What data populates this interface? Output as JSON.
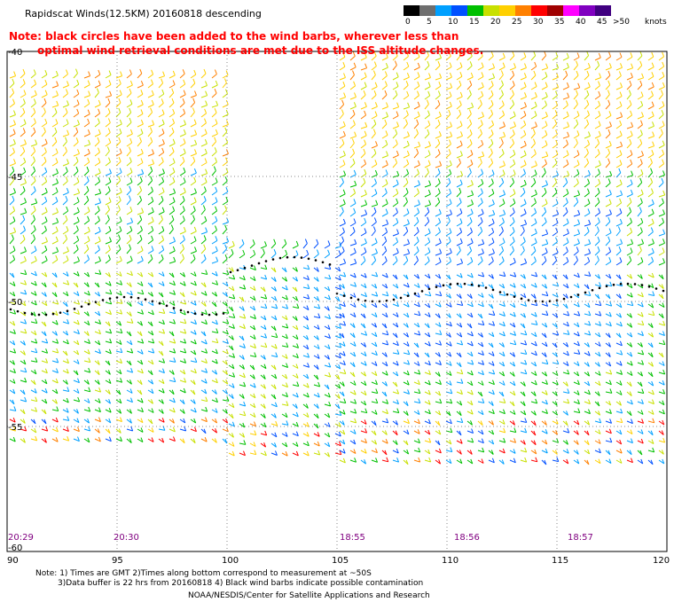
{
  "title": "Rapidscat Winds(12.5KM) 20160818 descending",
  "note_line1": "Note: black circles have been added to the wind barbs, wherever less than",
  "note_line2": "optimal wind retrieval conditions are met due to the ISS altitude changes.",
  "legend": {
    "unit": "knots",
    "labels": [
      "0",
      "5",
      "10",
      "15",
      "20",
      "25",
      "30",
      "35",
      "40",
      "45",
      ">50"
    ],
    "colors": [
      "#000000",
      "#6e6e6e",
      "#00a0ff",
      "#0050ff",
      "#00c000",
      "#c8e000",
      "#ffd000",
      "#ff8000",
      "#ff0000",
      "#a00000",
      "#ff00ff",
      "#8000c0",
      "#400080"
    ]
  },
  "axes": {
    "lon_ticks": [
      "90",
      "95",
      "100",
      "105",
      "110",
      "115",
      "120"
    ],
    "lat_ticks": [
      "-40",
      "-45",
      "-50",
      "-55",
      "-60"
    ]
  },
  "pass_times": [
    "20:29",
    "20:30",
    "18:55",
    "18:56",
    "18:57"
  ],
  "footer": {
    "line1": "Note: 1) Times are GMT 2)Times along bottom correspond to measurement at ~50S",
    "line2": "3)Data buffer is 22 hrs from 20160818 4) Black wind barbs indicate possible contamination",
    "line3": "NOAA/NESDIS/Center for Satellite Applications and Research"
  }
}
